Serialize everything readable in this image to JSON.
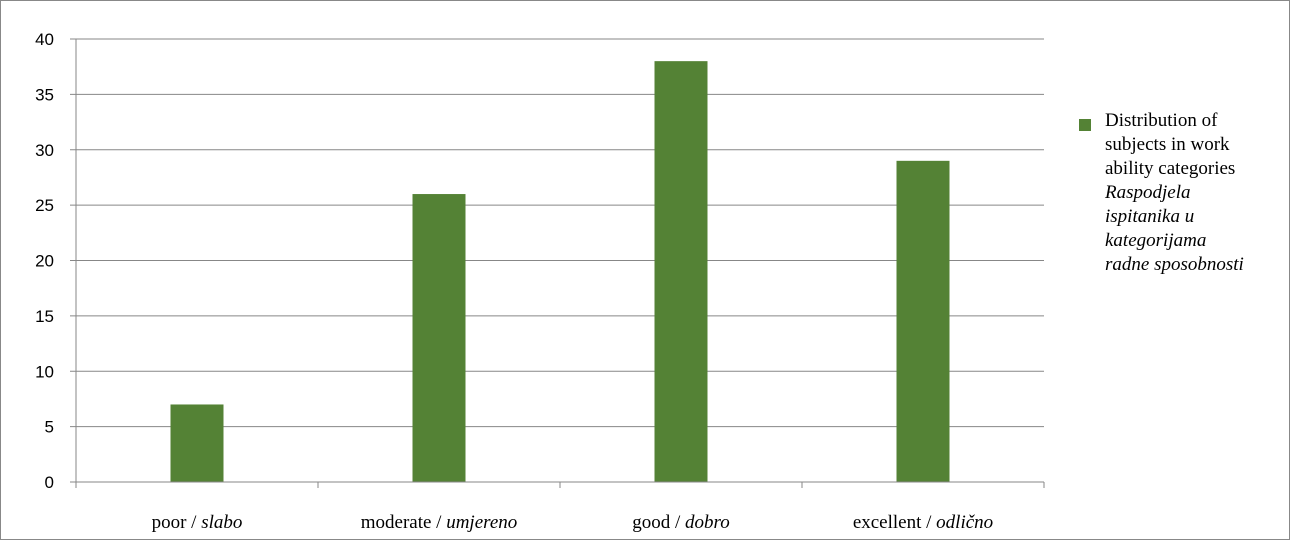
{
  "chart_data": {
    "type": "bar",
    "categories": [
      {
        "en": "poor / ",
        "hr": "slabo"
      },
      {
        "en": "moderate / ",
        "hr": "umjereno"
      },
      {
        "en": "good / ",
        "hr": "dobro"
      },
      {
        "en": "excellent / ",
        "hr": "odlično"
      }
    ],
    "series": [
      {
        "name": "Distribution of subjects in work ability categories",
        "name_hr": "Raspodjela ispitanika u kategorijama radne sposobnosti",
        "values": [
          7,
          26,
          38,
          29
        ],
        "color": "#548235"
      }
    ],
    "ylim": [
      0,
      40
    ],
    "yticks": [
      0,
      5,
      10,
      15,
      20,
      25,
      30,
      35,
      40
    ],
    "grid": true,
    "legend_position": "right"
  }
}
